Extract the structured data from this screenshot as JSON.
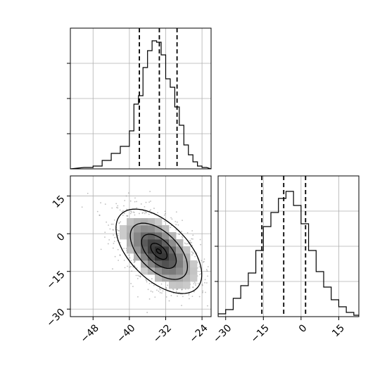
{
  "chart_data": [
    {
      "type": "histogram",
      "panel": "top-left",
      "xlim": [
        -53,
        -22
      ],
      "bin_edges": [
        -50,
        -48,
        -46,
        -44,
        -42,
        -40,
        -39,
        -38,
        -37,
        -36,
        -35,
        -34,
        -33,
        -32,
        -31,
        -30,
        -29,
        -28,
        -27,
        -26,
        -25,
        -24,
        -23
      ],
      "counts": [
        1,
        2,
        6,
        11,
        16,
        27,
        46,
        52,
        72,
        84,
        91,
        90,
        81,
        64,
        58,
        44,
        31,
        17,
        10,
        5,
        2,
        1
      ],
      "ylim": [
        0,
        100
      ],
      "quantiles": [
        -37.8,
        -33.4,
        -29.5
      ],
      "grid": true
    },
    {
      "type": "histogram",
      "panel": "bottom-right",
      "xlim": [
        -33,
        23
      ],
      "bin_edges": [
        -33,
        -30,
        -27,
        -24,
        -21,
        -18,
        -15,
        -12,
        -9,
        -6,
        -3,
        0,
        3,
        6,
        9,
        12,
        15,
        18,
        21,
        23
      ],
      "counts": [
        2,
        5,
        13,
        22,
        31,
        47,
        64,
        74,
        84,
        89,
        79,
        66,
        47,
        32,
        21,
        12,
        7,
        3,
        1
      ],
      "ylim": [
        0,
        100
      ],
      "quantiles": [
        -15.6,
        -6.9,
        1.8
      ],
      "grid": true
    },
    {
      "type": "scatter_density",
      "panel": "bottom-left",
      "xlim": [
        -53,
        -22
      ],
      "ylim": [
        -33,
        23
      ],
      "x_ticks": [
        -48,
        -40,
        -32,
        -24
      ],
      "y_ticks": [
        15,
        0,
        -15,
        -30
      ],
      "x_tick_labels": [
        "−48",
        "−40",
        "−32",
        "−24"
      ],
      "y_tick_labels": [
        "15",
        "0",
        "−15",
        "−30"
      ],
      "mean": [
        -33.5,
        -7
      ],
      "std": [
        4.5,
        8
      ],
      "correlation": -0.55,
      "contour_levels": [
        2.1,
        1.4,
        0.85,
        0.4,
        0.12
      ],
      "grid": true
    },
    {
      "type": "axis",
      "panel": "bottom-right-x",
      "x_ticks": [
        -30,
        -15,
        0,
        15
      ],
      "x_tick_labels": [
        "−30",
        "−15",
        "0",
        "15"
      ]
    }
  ]
}
